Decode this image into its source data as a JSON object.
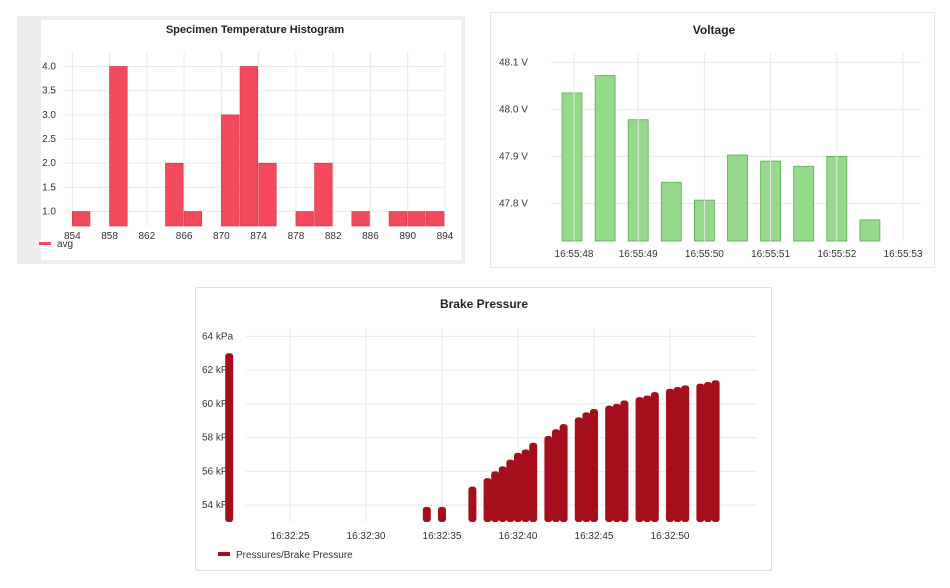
{
  "chart_data": [
    {
      "type": "bar",
      "title": "Specimen Temperature Histogram",
      "x": [
        855,
        859,
        865,
        867,
        871,
        873,
        875,
        879,
        881,
        885,
        889,
        891,
        893
      ],
      "values": [
        1,
        4,
        2,
        1,
        3,
        4,
        2,
        1,
        2,
        1,
        1,
        1,
        1
      ],
      "bin_width": 2,
      "xlim": [
        853,
        894
      ],
      "ylim": [
        0.7,
        4.3
      ],
      "xticks": [
        "854",
        "858",
        "862",
        "866",
        "870",
        "874",
        "878",
        "882",
        "886",
        "890",
        "894"
      ],
      "yticks": [
        "1.0",
        "1.5",
        "2.0",
        "2.5",
        "3.0",
        "3.5",
        "4.0"
      ],
      "series": [
        {
          "name": "avg",
          "color": "#f2495c"
        }
      ],
      "grid": true,
      "legend": "bottom-left"
    },
    {
      "type": "bar",
      "title": "Voltage",
      "values": [
        48.035,
        48.072,
        47.978,
        47.845,
        47.807,
        47.903,
        47.89,
        47.879,
        47.9,
        47.765
      ],
      "ylim": [
        47.72,
        48.12
      ],
      "yticks": [
        "47.8 V",
        "47.9 V",
        "48.0 V",
        "48.1 V"
      ],
      "xticks": [
        "16:55:48",
        "16:55:49",
        "16:55:50",
        "16:55:51",
        "16:55:52",
        "16:55:53"
      ],
      "color": "#96d98d",
      "grid": true
    },
    {
      "type": "bar",
      "title": "Brake Pressure",
      "x": [
        "16:32:21",
        "16:32:34",
        "16:32:35",
        "16:32:37",
        "16:32:38",
        "16:32:38.5",
        "16:32:39",
        "16:32:39.5",
        "16:32:40",
        "16:32:40.5",
        "16:32:41",
        "16:32:42",
        "16:32:42.5",
        "16:32:43",
        "16:32:44",
        "16:32:44.5",
        "16:32:45",
        "16:32:46",
        "16:32:46.5",
        "16:32:47",
        "16:32:48",
        "16:32:48.5",
        "16:32:49",
        "16:32:50",
        "16:32:50.5",
        "16:32:51",
        "16:32:52",
        "16:32:52.5",
        "16:32:53"
      ],
      "values": [
        63.0,
        53.9,
        53.9,
        55.1,
        55.6,
        56.0,
        56.3,
        56.7,
        57.1,
        57.3,
        57.7,
        58.1,
        58.5,
        58.8,
        59.2,
        59.5,
        59.7,
        59.9,
        60.0,
        60.2,
        60.4,
        60.5,
        60.7,
        60.9,
        61.0,
        61.1,
        61.2,
        61.3,
        61.4
      ],
      "ylim": [
        53,
        64.5
      ],
      "yticks": [
        "54 kPa",
        "56 kPa",
        "58 kPa",
        "60 kPa",
        "62 kPa",
        "64 kPa"
      ],
      "xticks": [
        "16:32:25",
        "16:32:30",
        "16:32:35",
        "16:32:40",
        "16:32:45",
        "16:32:50"
      ],
      "series": [
        {
          "name": "Pressures/Brake Pressure",
          "color": "#a50e1b"
        }
      ],
      "grid": true,
      "legend": "bottom-left"
    }
  ]
}
